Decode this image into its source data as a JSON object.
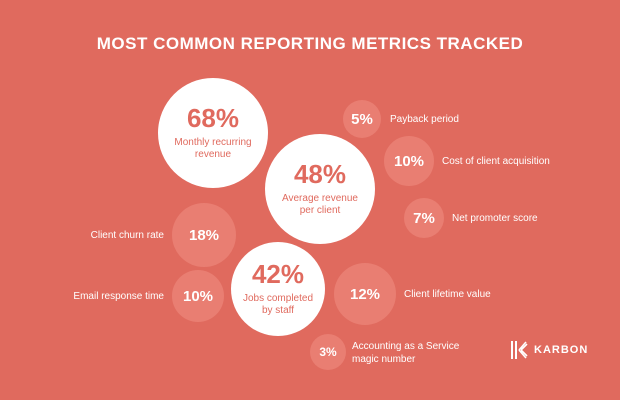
{
  "title": "MOST COMMON REPORTING METRICS TRACKED",
  "logo": {
    "text": "KARBON",
    "icon": "karbon-logo-icon"
  },
  "colors": {
    "background": "#e06a5e",
    "highlight_bubble": "#ffffff",
    "minor_bubble": "#e97e72",
    "text": "#ffffff"
  },
  "chart_data": {
    "type": "bubble",
    "title": "MOST COMMON REPORTING METRICS TRACKED",
    "unit": "%",
    "metrics": [
      {
        "label": "Monthly recurring revenue",
        "value": 68,
        "display": "68%"
      },
      {
        "label": "Average revenue per client",
        "value": 48,
        "display": "48%"
      },
      {
        "label": "Jobs completed by staff",
        "value": 42,
        "display": "42%"
      },
      {
        "label": "Client churn rate",
        "value": 18,
        "display": "18%"
      },
      {
        "label": "Client lifetime value",
        "value": 12,
        "display": "12%"
      },
      {
        "label": "Email response time",
        "value": 10,
        "display": "10%"
      },
      {
        "label": "Cost of client acquisition",
        "value": 10,
        "display": "10%"
      },
      {
        "label": "Net promoter score",
        "value": 7,
        "display": "7%"
      },
      {
        "label": "Payback period",
        "value": 5,
        "display": "5%"
      },
      {
        "label": "Accounting as a Service magic number",
        "value": 3,
        "display": "3%"
      }
    ]
  }
}
